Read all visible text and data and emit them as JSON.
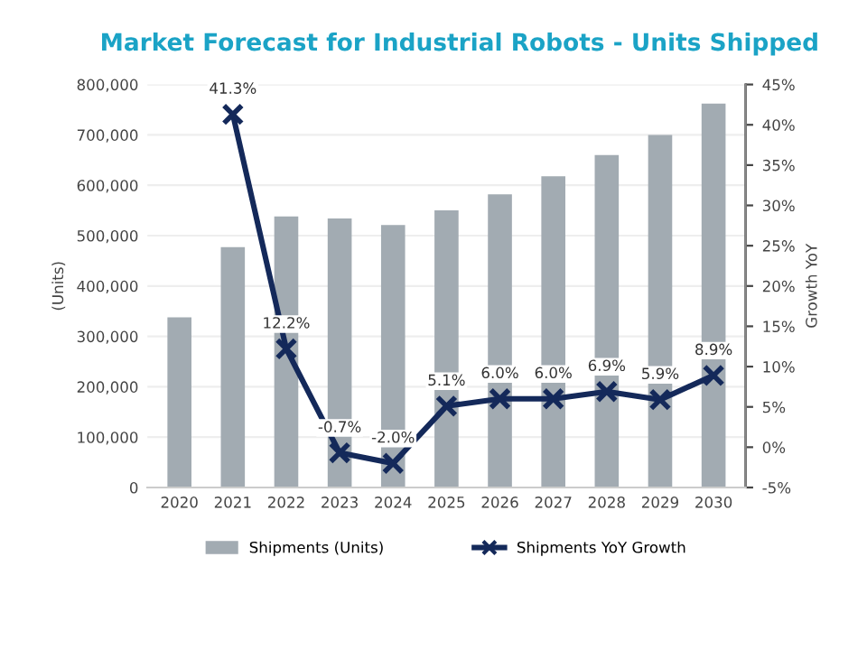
{
  "chart_data": {
    "type": "bar",
    "title": "Market Forecast for Industrial Robots - Units Shipped",
    "ylabel": "(Units)",
    "y2label": "Growth YoY",
    "categories": [
      "2020",
      "2021",
      "2022",
      "2023",
      "2024",
      "2025",
      "2026",
      "2027",
      "2028",
      "2029",
      "2030"
    ],
    "series": [
      {
        "name": "Shipments (Units)",
        "color": "#a2abb2",
        "values": [
          338000,
          477000,
          538000,
          534000,
          521000,
          550000,
          582000,
          618000,
          660000,
          700000,
          762000
        ]
      },
      {
        "name": "Shipments YoY Growth",
        "type": "line",
        "axis": "y2",
        "color": "#14295a",
        "marker": "cross",
        "values": [
          null,
          41.3,
          12.2,
          -0.7,
          -2.0,
          5.1,
          6.0,
          6.0,
          6.9,
          5.9,
          8.9
        ],
        "value_labels": [
          null,
          "41.3%",
          "12.2%",
          "-0.7%",
          "-2.0%",
          "5.1%",
          "6.0%",
          "6.0%",
          "6.9%",
          "5.9%",
          "8.9%"
        ]
      }
    ],
    "ylim": [
      0,
      800000
    ],
    "yticks": [
      {
        "value": 0,
        "label": "0"
      },
      {
        "value": 100000,
        "label": "100,000"
      },
      {
        "value": 200000,
        "label": "200,000"
      },
      {
        "value": 300000,
        "label": "300,000"
      },
      {
        "value": 400000,
        "label": "400,000"
      },
      {
        "value": 500000,
        "label": "500,000"
      },
      {
        "value": 600000,
        "label": "600,000"
      },
      {
        "value": 700000,
        "label": "700,000"
      },
      {
        "value": 800000,
        "label": "800,000"
      }
    ],
    "y2lim": [
      -5,
      45
    ],
    "y2ticks": [
      {
        "value": -5,
        "label": "-5%"
      },
      {
        "value": 0,
        "label": "0%"
      },
      {
        "value": 5,
        "label": "5%"
      },
      {
        "value": 10,
        "label": "10%"
      },
      {
        "value": 15,
        "label": "15%"
      },
      {
        "value": 20,
        "label": "20%"
      },
      {
        "value": 25,
        "label": "25%"
      },
      {
        "value": 30,
        "label": "30%"
      },
      {
        "value": 35,
        "label": "35%"
      },
      {
        "value": 40,
        "label": "40%"
      },
      {
        "value": 45,
        "label": "45%"
      }
    ],
    "grid": "y",
    "legend": "bottom"
  }
}
